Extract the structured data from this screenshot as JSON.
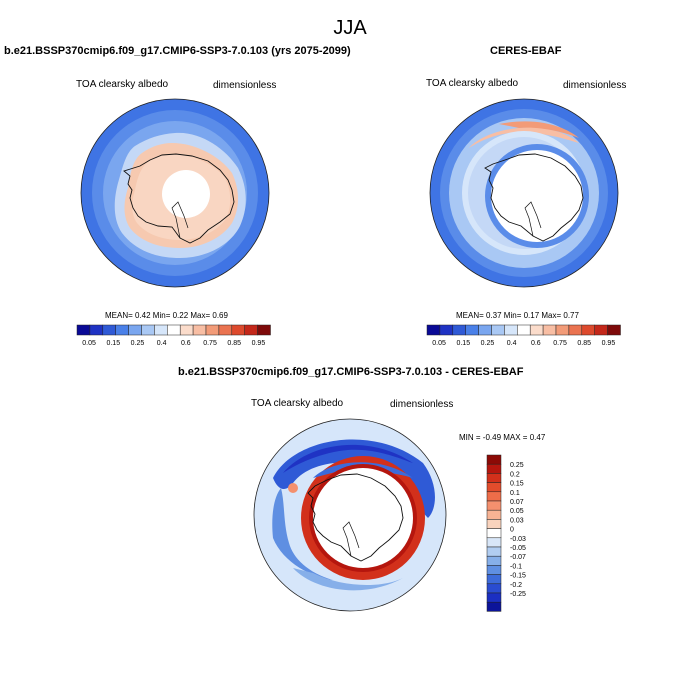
{
  "page_title": "JJA",
  "panel_left": {
    "title": "b.e21.BSSP370cmip6.f09_g17.CMIP6-SSP3-7.0.103 (yrs 2075-2099)",
    "variable": "TOA clearsky albedo",
    "units": "dimensionless",
    "stats": "MEAN=   0.42  Min=   0.22  Max=   0.69"
  },
  "panel_right": {
    "title": "CERES-EBAF",
    "variable": "TOA clearsky albedo",
    "units": "dimensionless",
    "stats": "MEAN=   0.37  Min=   0.17  Max=   0.77"
  },
  "top_colorbar": {
    "colors": [
      "#0a0a96",
      "#1f33c4",
      "#2f5ad6",
      "#4a80e8",
      "#7aa6ef",
      "#a9c8f4",
      "#d6e6fa",
      "#ffffff",
      "#fbdccb",
      "#f8bea4",
      "#f29b78",
      "#ea7350",
      "#dd4a2d",
      "#c4281a",
      "#7e0a0a"
    ],
    "labels": [
      "0.05",
      "0.15",
      "0.25",
      "0.4",
      "0.6",
      "0.75",
      "0.85",
      "0.95"
    ]
  },
  "panel_diff": {
    "title": "b.e21.BSSP370cmip6.f09_g17.CMIP6-SSP3-7.0.103 - CERES-EBAF",
    "variable": "TOA clearsky albedo",
    "units": "dimensionless",
    "stats": "MIN =  -0.49 MAX =   0.47"
  },
  "diff_colorbar": {
    "colors": [
      "#8c0a06",
      "#b5160e",
      "#d2301b",
      "#e24c2c",
      "#ee6d49",
      "#f4906e",
      "#f7b394",
      "#f9d3bd",
      "#ffffff",
      "#d8e6f8",
      "#b1cdf1",
      "#86afe9",
      "#5f8fe2",
      "#3d6bda",
      "#2a4cd1",
      "#1b2fc2",
      "#0c149a"
    ],
    "labels": [
      "0.25",
      "0.2",
      "0.15",
      "0.1",
      "0.07",
      "0.05",
      "0.03",
      "0",
      "-0.03",
      "-0.05",
      "-0.07",
      "-0.1",
      "-0.15",
      "-0.2",
      "-0.25"
    ]
  }
}
